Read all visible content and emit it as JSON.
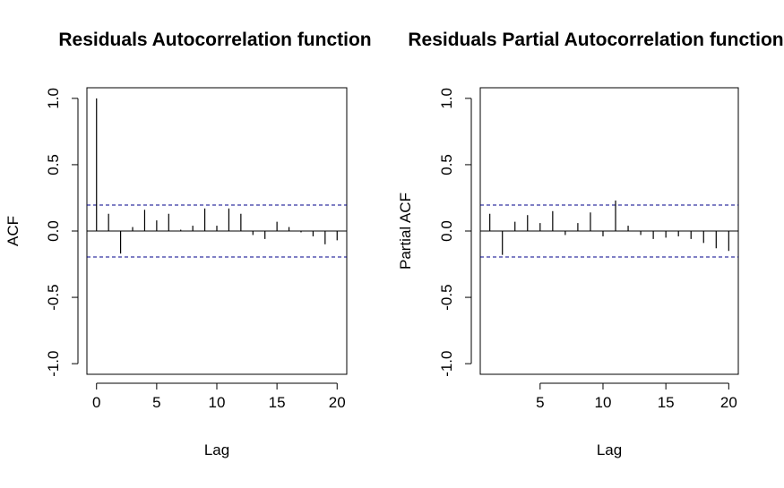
{
  "chart_data": [
    {
      "type": "bar",
      "title": "Residuals Autocorrelation function",
      "xlabel": "Lag",
      "ylabel": "ACF",
      "xlim": [
        0,
        20
      ],
      "ylim": [
        -1,
        1
      ],
      "xticks": [
        0,
        5,
        10,
        15,
        20
      ],
      "yticks": [
        -1.0,
        -0.5,
        0.0,
        0.5,
        1.0
      ],
      "yticklabels": [
        "-1.0",
        "-0.5",
        "0.0",
        "0.5",
        "1.0"
      ],
      "ci": 0.196,
      "ci_color": "#00008b",
      "x": [
        0,
        1,
        2,
        3,
        4,
        5,
        6,
        7,
        8,
        9,
        10,
        11,
        12,
        13,
        14,
        15,
        16,
        17,
        18,
        19,
        20
      ],
      "values": [
        1.0,
        0.13,
        -0.17,
        0.03,
        0.16,
        0.08,
        0.13,
        0.01,
        0.04,
        0.17,
        0.04,
        0.17,
        0.13,
        -0.03,
        -0.06,
        0.07,
        0.03,
        -0.01,
        -0.04,
        -0.1,
        -0.07
      ]
    },
    {
      "type": "bar",
      "title": "Residuals Partial Autocorrelation function",
      "xlabel": "Lag",
      "ylabel": "Partial ACF",
      "xlim": [
        1,
        20
      ],
      "ylim": [
        -1,
        1
      ],
      "xticks": [
        5,
        10,
        15,
        20
      ],
      "yticks": [
        -1.0,
        -0.5,
        0.0,
        0.5,
        1.0
      ],
      "yticklabels": [
        "-1.0",
        "-0.5",
        "0.0",
        "0.5",
        "1.0"
      ],
      "ci": 0.196,
      "ci_color": "#00008b",
      "x": [
        1,
        2,
        3,
        4,
        5,
        6,
        7,
        8,
        9,
        10,
        11,
        12,
        13,
        14,
        15,
        16,
        17,
        18,
        19,
        20
      ],
      "values": [
        0.13,
        -0.18,
        0.07,
        0.12,
        0.06,
        0.15,
        -0.03,
        0.06,
        0.14,
        -0.04,
        0.23,
        0.04,
        -0.03,
        -0.06,
        -0.05,
        -0.04,
        -0.06,
        -0.09,
        -0.13,
        -0.15
      ]
    }
  ]
}
